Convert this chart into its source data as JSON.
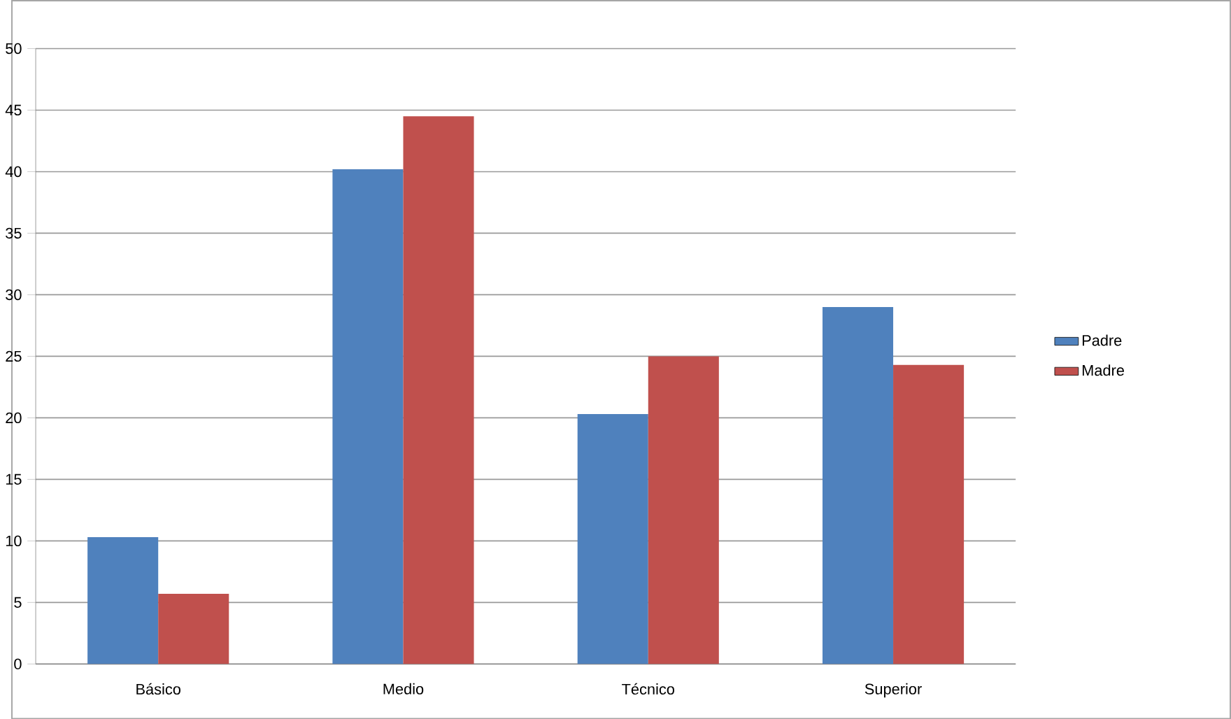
{
  "chart_data": {
    "type": "bar",
    "categories": [
      "Básico",
      "Medio",
      "Técnico",
      "Superior"
    ],
    "series": [
      {
        "name": "Padre",
        "color": "#4f81bd",
        "values": [
          10.3,
          40.2,
          20.3,
          29.0
        ]
      },
      {
        "name": "Madre",
        "color": "#c0504d",
        "values": [
          5.7,
          44.5,
          25.0,
          24.3
        ]
      }
    ],
    "ylim": [
      0,
      50
    ],
    "yticks": [
      0,
      5,
      10,
      15,
      20,
      25,
      30,
      35,
      40,
      45,
      50
    ],
    "grid": "y",
    "legend": "right"
  }
}
